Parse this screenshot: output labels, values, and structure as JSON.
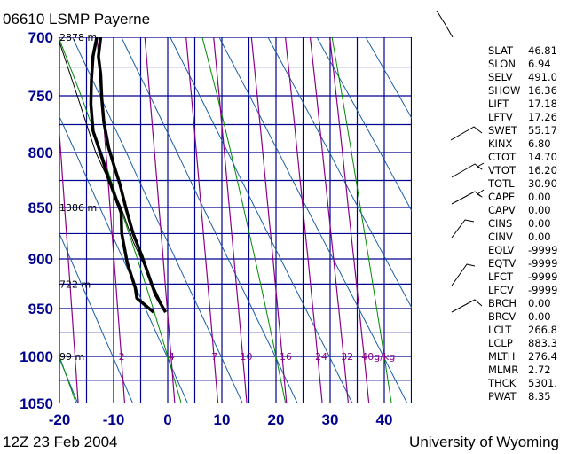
{
  "header": {
    "title": "06610 LSMP Payerne"
  },
  "footer": {
    "time": "12Z 23 Feb 2004",
    "source": "University of Wyoming"
  },
  "colors": {
    "grid": "#000090",
    "dry_adiabat": "#1a5fa8",
    "moist_adiabat": "#008a00",
    "mixing_ratio": "#8b008b",
    "sounding": "#000000"
  },
  "chart_data": {
    "type": "line",
    "title": "06610 LSMP Payerne",
    "xlabel": "",
    "ylabel": "",
    "x_axis": {
      "range": [
        -20,
        45
      ],
      "ticks": [
        -20,
        -10,
        0,
        10,
        20,
        30,
        40
      ]
    },
    "y_axis": {
      "scale": "log",
      "range": [
        1050,
        700
      ],
      "ticks": [
        700,
        750,
        800,
        850,
        900,
        950,
        1000,
        1050
      ]
    },
    "grid": true,
    "height_labels": [
      {
        "p": 700,
        "text": "2878 m"
      },
      {
        "p": 850,
        "text": "1386 m"
      },
      {
        "p": 925,
        "text": "722 m"
      },
      {
        "p": 1000,
        "text": "99 m"
      }
    ],
    "mixing_ratio_labels": [
      {
        "w": 2,
        "text": "2"
      },
      {
        "w": 4,
        "text": "4"
      },
      {
        "w": 7,
        "text": "7"
      },
      {
        "w": 10,
        "text": "10"
      },
      {
        "w": 16,
        "text": "16"
      },
      {
        "w": 24,
        "text": "24"
      },
      {
        "w": 32,
        "text": "32"
      },
      {
        "w": 40,
        "text": "40g/kg"
      }
    ],
    "mixing_ratio_lines": [
      1,
      2,
      4,
      7,
      10,
      16,
      24,
      32,
      40
    ],
    "series": [
      {
        "role": "temperature",
        "points": [
          [
            953.7,
            -0.4
          ],
          [
            935.4,
            -2.3
          ],
          [
            896.6,
            -4.8
          ],
          [
            875,
            -6.4
          ],
          [
            851,
            -7.7
          ],
          [
            829,
            -8.8
          ],
          [
            812,
            -9.9
          ],
          [
            796,
            -10.9
          ],
          [
            772.7,
            -11.8
          ],
          [
            751.6,
            -12.2
          ],
          [
            731,
            -12.4
          ],
          [
            715.9,
            -12.8
          ],
          [
            700,
            -12.4
          ]
        ]
      },
      {
        "role": "dewpoint",
        "points": [
          [
            953.7,
            -2.6
          ],
          [
            939.3,
            -5.7
          ],
          [
            928.6,
            -6.0
          ],
          [
            903.6,
            -7.5
          ],
          [
            875,
            -8.5
          ],
          [
            855,
            -8.6
          ],
          [
            822.6,
            -11.0
          ],
          [
            800.8,
            -12.4
          ],
          [
            780.5,
            -13.8
          ],
          [
            757,
            -14.2
          ],
          [
            736.4,
            -14.1
          ],
          [
            715.9,
            -13.8
          ],
          [
            700,
            -13.1
          ]
        ]
      },
      {
        "role": "parcel",
        "points": [
          [
            953.7,
            -0.4
          ],
          [
            883.3,
            -6.35
          ],
          [
            850,
            -8.6
          ],
          [
            800,
            -13.3
          ],
          [
            750,
            -16.7
          ],
          [
            700,
            -20.3
          ]
        ]
      }
    ]
  },
  "indices": [
    {
      "key": "SLAT",
      "value": "46.81"
    },
    {
      "key": "SLON",
      "value": "6.94"
    },
    {
      "key": "SELV",
      "value": "491.0"
    },
    {
      "key": "SHOW",
      "value": "16.36"
    },
    {
      "key": "LIFT",
      "value": "17.18"
    },
    {
      "key": "LFTV",
      "value": "17.26"
    },
    {
      "key": "SWET",
      "value": "55.17"
    },
    {
      "key": "KINX",
      "value": "6.80"
    },
    {
      "key": "CTOT",
      "value": "14.70"
    },
    {
      "key": "VTOT",
      "value": "16.20"
    },
    {
      "key": "TOTL",
      "value": "30.90"
    },
    {
      "key": "CAPE",
      "value": "0.00"
    },
    {
      "key": "CAPV",
      "value": "0.00"
    },
    {
      "key": "CINS",
      "value": "0.00"
    },
    {
      "key": "CINV",
      "value": "0.00"
    },
    {
      "key": "EQLV",
      "value": "-9999"
    },
    {
      "key": "EQTV",
      "value": "-9999"
    },
    {
      "key": "LFCT",
      "value": "-9999"
    },
    {
      "key": "LFCV",
      "value": "-9999"
    },
    {
      "key": "BRCH",
      "value": "0.00"
    },
    {
      "key": "BRCV",
      "value": "0.00"
    },
    {
      "key": "LCLT",
      "value": "266.8"
    },
    {
      "key": "LCLP",
      "value": "883.3"
    },
    {
      "key": "MLTH",
      "value": "276.4"
    },
    {
      "key": "MLMR",
      "value": "2.72"
    },
    {
      "key": "THCK",
      "value": "5301."
    },
    {
      "key": "PWAT",
      "value": "8.35"
    }
  ]
}
